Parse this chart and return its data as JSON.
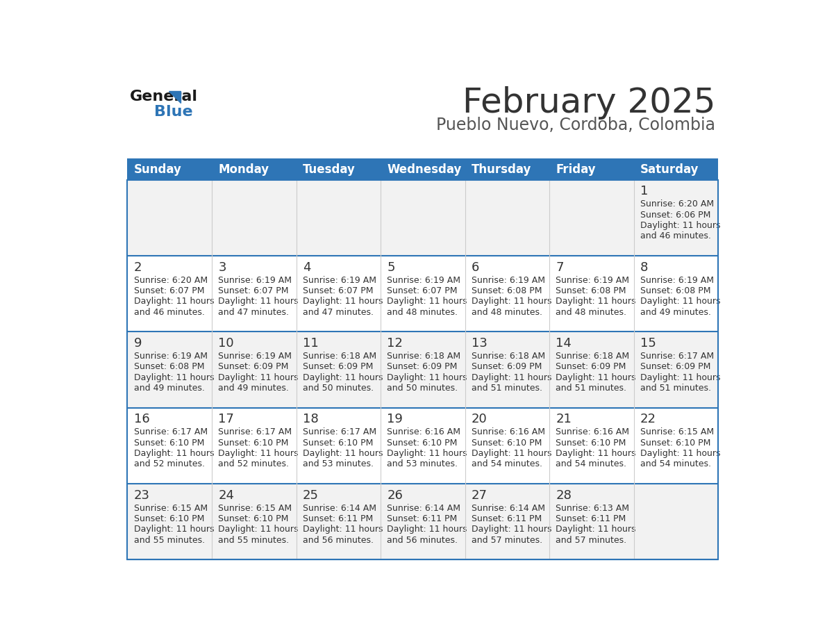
{
  "title": "February 2025",
  "subtitle": "Pueblo Nuevo, Cordoba, Colombia",
  "days_of_week": [
    "Sunday",
    "Monday",
    "Tuesday",
    "Wednesday",
    "Thursday",
    "Friday",
    "Saturday"
  ],
  "header_bg": "#2E75B6",
  "header_text": "#FFFFFF",
  "row_bg_odd": "#F2F2F2",
  "row_bg_even": "#FFFFFF",
  "separator_color": "#2E75B6",
  "date_color": "#333333",
  "info_color": "#333333",
  "title_color": "#333333",
  "subtitle_color": "#555555",
  "calendar": [
    [
      null,
      null,
      null,
      null,
      null,
      null,
      {
        "day": 1,
        "sunrise": "6:20 AM",
        "sunset": "6:06 PM",
        "daylight_l1": "11 hours",
        "daylight_l2": "and 46 minutes."
      }
    ],
    [
      {
        "day": 2,
        "sunrise": "6:20 AM",
        "sunset": "6:07 PM",
        "daylight_l1": "11 hours",
        "daylight_l2": "and 46 minutes."
      },
      {
        "day": 3,
        "sunrise": "6:19 AM",
        "sunset": "6:07 PM",
        "daylight_l1": "11 hours",
        "daylight_l2": "and 47 minutes."
      },
      {
        "day": 4,
        "sunrise": "6:19 AM",
        "sunset": "6:07 PM",
        "daylight_l1": "11 hours",
        "daylight_l2": "and 47 minutes."
      },
      {
        "day": 5,
        "sunrise": "6:19 AM",
        "sunset": "6:07 PM",
        "daylight_l1": "11 hours",
        "daylight_l2": "and 48 minutes."
      },
      {
        "day": 6,
        "sunrise": "6:19 AM",
        "sunset": "6:08 PM",
        "daylight_l1": "11 hours",
        "daylight_l2": "and 48 minutes."
      },
      {
        "day": 7,
        "sunrise": "6:19 AM",
        "sunset": "6:08 PM",
        "daylight_l1": "11 hours",
        "daylight_l2": "and 48 minutes."
      },
      {
        "day": 8,
        "sunrise": "6:19 AM",
        "sunset": "6:08 PM",
        "daylight_l1": "11 hours",
        "daylight_l2": "and 49 minutes."
      }
    ],
    [
      {
        "day": 9,
        "sunrise": "6:19 AM",
        "sunset": "6:08 PM",
        "daylight_l1": "11 hours",
        "daylight_l2": "and 49 minutes."
      },
      {
        "day": 10,
        "sunrise": "6:19 AM",
        "sunset": "6:09 PM",
        "daylight_l1": "11 hours",
        "daylight_l2": "and 49 minutes."
      },
      {
        "day": 11,
        "sunrise": "6:18 AM",
        "sunset": "6:09 PM",
        "daylight_l1": "11 hours",
        "daylight_l2": "and 50 minutes."
      },
      {
        "day": 12,
        "sunrise": "6:18 AM",
        "sunset": "6:09 PM",
        "daylight_l1": "11 hours",
        "daylight_l2": "and 50 minutes."
      },
      {
        "day": 13,
        "sunrise": "6:18 AM",
        "sunset": "6:09 PM",
        "daylight_l1": "11 hours",
        "daylight_l2": "and 51 minutes."
      },
      {
        "day": 14,
        "sunrise": "6:18 AM",
        "sunset": "6:09 PM",
        "daylight_l1": "11 hours",
        "daylight_l2": "and 51 minutes."
      },
      {
        "day": 15,
        "sunrise": "6:17 AM",
        "sunset": "6:09 PM",
        "daylight_l1": "11 hours",
        "daylight_l2": "and 51 minutes."
      }
    ],
    [
      {
        "day": 16,
        "sunrise": "6:17 AM",
        "sunset": "6:10 PM",
        "daylight_l1": "11 hours",
        "daylight_l2": "and 52 minutes."
      },
      {
        "day": 17,
        "sunrise": "6:17 AM",
        "sunset": "6:10 PM",
        "daylight_l1": "11 hours",
        "daylight_l2": "and 52 minutes."
      },
      {
        "day": 18,
        "sunrise": "6:17 AM",
        "sunset": "6:10 PM",
        "daylight_l1": "11 hours",
        "daylight_l2": "and 53 minutes."
      },
      {
        "day": 19,
        "sunrise": "6:16 AM",
        "sunset": "6:10 PM",
        "daylight_l1": "11 hours",
        "daylight_l2": "and 53 minutes."
      },
      {
        "day": 20,
        "sunrise": "6:16 AM",
        "sunset": "6:10 PM",
        "daylight_l1": "11 hours",
        "daylight_l2": "and 54 minutes."
      },
      {
        "day": 21,
        "sunrise": "6:16 AM",
        "sunset": "6:10 PM",
        "daylight_l1": "11 hours",
        "daylight_l2": "and 54 minutes."
      },
      {
        "day": 22,
        "sunrise": "6:15 AM",
        "sunset": "6:10 PM",
        "daylight_l1": "11 hours",
        "daylight_l2": "and 54 minutes."
      }
    ],
    [
      {
        "day": 23,
        "sunrise": "6:15 AM",
        "sunset": "6:10 PM",
        "daylight_l1": "11 hours",
        "daylight_l2": "and 55 minutes."
      },
      {
        "day": 24,
        "sunrise": "6:15 AM",
        "sunset": "6:10 PM",
        "daylight_l1": "11 hours",
        "daylight_l2": "and 55 minutes."
      },
      {
        "day": 25,
        "sunrise": "6:14 AM",
        "sunset": "6:11 PM",
        "daylight_l1": "11 hours",
        "daylight_l2": "and 56 minutes."
      },
      {
        "day": 26,
        "sunrise": "6:14 AM",
        "sunset": "6:11 PM",
        "daylight_l1": "11 hours",
        "daylight_l2": "and 56 minutes."
      },
      {
        "day": 27,
        "sunrise": "6:14 AM",
        "sunset": "6:11 PM",
        "daylight_l1": "11 hours",
        "daylight_l2": "and 57 minutes."
      },
      {
        "day": 28,
        "sunrise": "6:13 AM",
        "sunset": "6:11 PM",
        "daylight_l1": "11 hours",
        "daylight_l2": "and 57 minutes."
      },
      null
    ]
  ],
  "logo_text_general": "General",
  "logo_text_blue": "Blue",
  "logo_color_general": "#1a1a1a",
  "logo_color_blue": "#2E75B6",
  "logo_triangle_color": "#2E75B6"
}
